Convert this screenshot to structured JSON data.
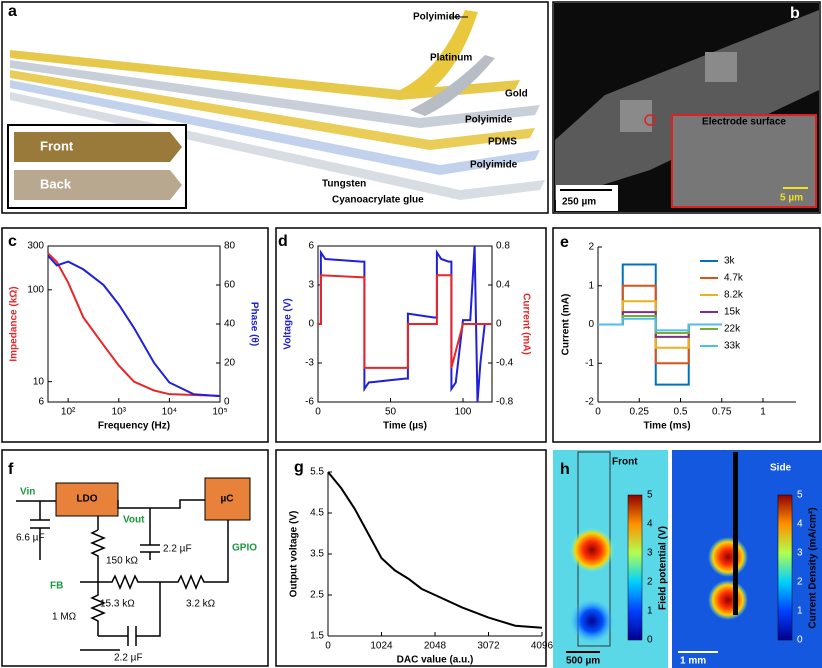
{
  "panels": {
    "a": {
      "label": "a",
      "layers": [
        "Polyimide",
        "Platinum",
        "Gold",
        "Polyimide",
        "PDMS",
        "Polyimide",
        "Tungsten",
        "Cyanoacrylate glue"
      ],
      "inset": [
        "Front",
        "Back"
      ]
    },
    "b": {
      "label": "b",
      "inset": "Electrode surface",
      "scale": "250 µm",
      "inset_scale": "5 µm"
    },
    "f": {
      "label": "f",
      "parts": [
        "Vin",
        "LDO",
        "Vout",
        "µC",
        "GPIO",
        "6.6 µF",
        "150 kΩ",
        "2.2 µF",
        "FB",
        "15.3 kΩ",
        "3.2 kΩ",
        "1 MΩ",
        "2.2 µF"
      ]
    },
    "h": {
      "label": "h",
      "front": "Front",
      "side": "Side",
      "front_bar": "Field potential (V)",
      "side_bar": "Current Density (mA/cm²)",
      "front_ticks": [
        0,
        1,
        2,
        3,
        4,
        5
      ],
      "side_ticks": [
        0,
        1,
        2,
        3,
        4,
        5
      ],
      "front_scale": "500 µm",
      "side_scale": "1 mm"
    }
  },
  "chart_data": [
    {
      "type": "line",
      "label": "c",
      "xlabel": "Frequency (Hz)",
      "ylabel": "Impedance (kΩ)",
      "y2label": "Phase (θ)",
      "xlog": true,
      "ylog": true,
      "xlim": [
        40,
        100000
      ],
      "ylim": [
        6,
        300
      ],
      "y2lim": [
        0,
        80
      ],
      "xticks": [
        {
          "value": 100,
          "label": "10²"
        },
        {
          "value": 1000,
          "label": "10³"
        },
        {
          "value": 10000,
          "label": "10⁴"
        },
        {
          "value": 100000,
          "label": "10⁵"
        }
      ],
      "yticks": [
        6,
        10,
        100,
        300
      ],
      "y2ticks": [
        0,
        20,
        40,
        60,
        80
      ],
      "series": [
        {
          "color": "#e8262a",
          "x": [
            40,
            60,
            100,
            200,
            500,
            1000,
            2000,
            5000,
            10000,
            100000
          ],
          "values": [
            250,
            200,
            120,
            50,
            25,
            15,
            10,
            8,
            7.3,
            7
          ]
        },
        {
          "color": "#2020d8",
          "axis": "y2",
          "x": [
            40,
            60,
            100,
            200,
            500,
            1000,
            2000,
            5000,
            10000,
            30000,
            100000
          ],
          "values": [
            75,
            70,
            72,
            68,
            60,
            50,
            38,
            20,
            10,
            4,
            3
          ]
        }
      ]
    },
    {
      "type": "line",
      "label": "d",
      "xlabel": "Time (µs)",
      "ylabel": "Voltage (V)",
      "y2label": "Current (mA)",
      "xlim": [
        0,
        120
      ],
      "ylim": [
        -6,
        6
      ],
      "y2lim": [
        -0.8,
        0.8
      ],
      "xticks": [
        0,
        50,
        100
      ],
      "yticks": [
        -6,
        -3,
        0,
        3,
        6
      ],
      "y2ticks": [
        -0.8,
        -0.4,
        0,
        0.4,
        0.8
      ],
      "series": [
        {
          "color": "#2020d8",
          "x": [
            0,
            2,
            2,
            5,
            30,
            32,
            32,
            35,
            60,
            62,
            62,
            80,
            82,
            82,
            85,
            90,
            92,
            92,
            95,
            100,
            105,
            108,
            109,
            110,
            112,
            115,
            120
          ],
          "values": [
            0,
            0,
            5.5,
            5,
            4.8,
            4.8,
            -5,
            -4.5,
            -4.2,
            -4.2,
            0.8,
            0.5,
            0.5,
            5.5,
            5,
            4.8,
            4.8,
            -5,
            -4.5,
            0.3,
            0.3,
            6,
            0,
            -6,
            -3,
            0,
            0
          ]
        },
        {
          "color": "#e8262a",
          "axis": "y2",
          "x": [
            0,
            2,
            2,
            30,
            32,
            32,
            60,
            62,
            62,
            82,
            82,
            92,
            92,
            100,
            120
          ],
          "values": [
            0,
            0,
            0.5,
            0.48,
            0.48,
            -0.45,
            -0.45,
            -0.45,
            0,
            0,
            0.5,
            0.5,
            -0.45,
            0,
            0
          ]
        }
      ]
    },
    {
      "type": "line",
      "label": "e",
      "xlabel": "Time (ms)",
      "ylabel": "Current (mA)",
      "xlim": [
        0,
        1.2
      ],
      "ylim": [
        -2,
        2
      ],
      "xticks": [
        0,
        0.25,
        0.5,
        0.75,
        1
      ],
      "yticks": [
        -2,
        -1,
        0,
        1,
        2
      ],
      "legend": "upper right",
      "series": [
        {
          "name": "3k",
          "color": "#0072bd",
          "x": [
            0,
            0.15,
            0.15,
            0.35,
            0.35,
            0.55,
            0.55,
            0.75
          ],
          "values": [
            0,
            0,
            1.55,
            1.55,
            -1.55,
            -1.55,
            0,
            0
          ]
        },
        {
          "name": "4.7k",
          "color": "#d95319",
          "x": [
            0,
            0.15,
            0.15,
            0.35,
            0.35,
            0.55,
            0.55,
            0.75
          ],
          "values": [
            0,
            0,
            1.0,
            1.0,
            -1.0,
            -1.0,
            0,
            0
          ]
        },
        {
          "name": "8.2k",
          "color": "#edb120",
          "x": [
            0,
            0.15,
            0.15,
            0.35,
            0.35,
            0.55,
            0.55,
            0.75
          ],
          "values": [
            0,
            0,
            0.6,
            0.6,
            -0.6,
            -0.6,
            0,
            0
          ]
        },
        {
          "name": "15k",
          "color": "#7e2f8e",
          "x": [
            0,
            0.15,
            0.15,
            0.35,
            0.35,
            0.55,
            0.55,
            0.75
          ],
          "values": [
            0,
            0,
            0.32,
            0.32,
            -0.32,
            -0.32,
            0,
            0
          ]
        },
        {
          "name": "22k",
          "color": "#77ac30",
          "x": [
            0,
            0.15,
            0.15,
            0.35,
            0.35,
            0.55,
            0.55,
            0.75
          ],
          "values": [
            0,
            0,
            0.22,
            0.22,
            -0.22,
            -0.22,
            0,
            0
          ]
        },
        {
          "name": "33k",
          "color": "#4dbeee",
          "x": [
            0,
            0.15,
            0.15,
            0.35,
            0.35,
            0.55,
            0.55,
            0.75
          ],
          "values": [
            0,
            0,
            0.15,
            0.15,
            -0.15,
            -0.15,
            0,
            0
          ]
        }
      ]
    },
    {
      "type": "line",
      "label": "g",
      "xlabel": "DAC value (a.u.)",
      "ylabel": "Output voltage (V)",
      "xlim": [
        0,
        4096
      ],
      "ylim": [
        1.5,
        5.5
      ],
      "xticks": [
        0,
        1024,
        2048,
        3072,
        4096
      ],
      "yticks": [
        1.5,
        2.5,
        3.5,
        4.5,
        5.5
      ],
      "series": [
        {
          "color": "#000000",
          "x": [
            0,
            256,
            512,
            768,
            1024,
            1280,
            1536,
            1792,
            2048,
            2560,
            3072,
            3584,
            4096
          ],
          "values": [
            5.5,
            5.1,
            4.6,
            4.0,
            3.4,
            3.1,
            2.9,
            2.65,
            2.5,
            2.2,
            1.95,
            1.75,
            1.7
          ]
        }
      ]
    }
  ]
}
